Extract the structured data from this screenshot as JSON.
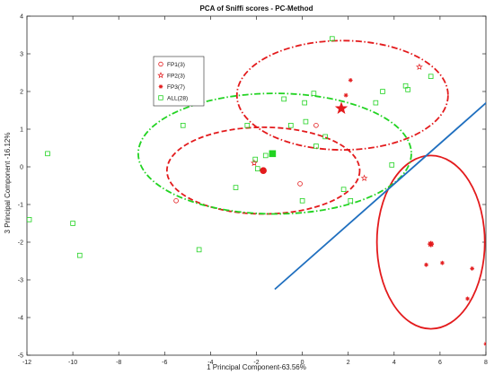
{
  "chart_data": {
    "type": "scatter",
    "title": "PCA of Sniffi scores - PC-Method",
    "xlabel": "1 Principal Component-63.56%",
    "ylabel": "3 Principal Component -16.12%",
    "xlim": [
      -12,
      8
    ],
    "ylim": [
      -5,
      4
    ],
    "xticks": [
      "-12",
      "-10",
      "-8",
      "-6",
      "-4",
      "-2",
      "0",
      "2",
      "4",
      "6",
      "8"
    ],
    "yticks": [
      "-5",
      "-4",
      "-3",
      "-2",
      "-1",
      "0",
      "1",
      "2",
      "3",
      "4"
    ],
    "legend_position": "top-left-inside",
    "colors": {
      "red": "#e31a1c",
      "green": "#22d322",
      "blue": "#1f6fbf"
    },
    "series": [
      {
        "name": "FP1(3)",
        "marker": "circle",
        "color": "#e31a1c",
        "points": [
          [
            -5.5,
            -0.9
          ],
          [
            -0.1,
            -0.45
          ],
          [
            0.6,
            1.1
          ]
        ],
        "centroid": [
          -1.7,
          -0.1
        ],
        "ellipse": {
          "cx": -1.7,
          "cy": -0.1,
          "rx": 4.2,
          "ry": 1.15,
          "style": "dashed"
        }
      },
      {
        "name": "FP2(3)",
        "marker": "star",
        "color": "#e31a1c",
        "points": [
          [
            -2.1,
            0.1
          ],
          [
            2.7,
            -0.3
          ],
          [
            5.1,
            2.65
          ]
        ],
        "centroid": [
          1.7,
          1.55
        ],
        "ellipse": {
          "cx": 1.75,
          "cy": 1.9,
          "rx": 4.6,
          "ry": 1.45,
          "style": "dashdot"
        }
      },
      {
        "name": "FP3(7)",
        "marker": "asterisk",
        "color": "#e31a1c",
        "points": [
          [
            1.9,
            1.9
          ],
          [
            2.1,
            2.3
          ],
          [
            6.1,
            -2.55
          ],
          [
            7.4,
            -2.7
          ],
          [
            7.2,
            -3.5
          ],
          [
            5.4,
            -2.6
          ],
          [
            8.0,
            -4.7
          ]
        ],
        "centroid": [
          5.6,
          -2.05
        ],
        "ellipse": {
          "cx": 5.6,
          "cy": -2.0,
          "rx": 2.35,
          "ry": 2.3,
          "style": "solid"
        }
      },
      {
        "name": "ALL(28)",
        "marker": "square",
        "color": "#22d322",
        "points": [
          [
            -11.9,
            -1.4
          ],
          [
            -11.1,
            0.35
          ],
          [
            -10.0,
            -1.5
          ],
          [
            -9.7,
            -2.35
          ],
          [
            -5.2,
            1.1
          ],
          [
            -4.5,
            -2.2
          ],
          [
            -2.9,
            -0.55
          ],
          [
            -2.4,
            1.1
          ],
          [
            -2.05,
            0.2
          ],
          [
            -1.95,
            -0.05
          ],
          [
            -1.6,
            0.3
          ],
          [
            -0.8,
            1.8
          ],
          [
            -0.5,
            1.1
          ],
          [
            0.1,
            1.7
          ],
          [
            0.15,
            1.2
          ],
          [
            0.5,
            1.95
          ],
          [
            0.6,
            0.55
          ],
          [
            1.0,
            0.8
          ],
          [
            1.3,
            3.4
          ],
          [
            1.8,
            -0.6
          ],
          [
            2.1,
            -0.9
          ],
          [
            3.2,
            1.7
          ],
          [
            3.5,
            2.0
          ],
          [
            3.9,
            0.05
          ],
          [
            4.5,
            2.15
          ],
          [
            4.6,
            2.05
          ],
          [
            5.6,
            2.4
          ],
          [
            0.0,
            -0.9
          ]
        ],
        "centroid": [
          -1.3,
          0.35
        ],
        "ellipse": {
          "cx": -1.2,
          "cy": 0.35,
          "rx": 5.95,
          "ry": 1.6,
          "style": "dashdot"
        }
      }
    ],
    "separator_line": {
      "color": "#1f6fbf",
      "from": [
        -1.2,
        -3.25
      ],
      "to": [
        9.5,
        2.5
      ]
    }
  }
}
